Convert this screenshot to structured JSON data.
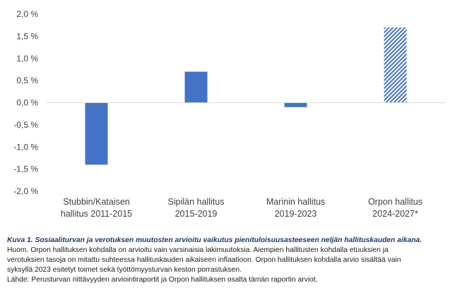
{
  "chart_data": {
    "type": "bar",
    "categories": [
      [
        "Stubbin/Kataisen",
        "hallitus 2011-2015"
      ],
      [
        "Sipilän hallitus",
        "2015-2019"
      ],
      [
        "Marinin hallitus",
        "2019-2023"
      ],
      [
        "Orpon hallitus",
        "2024-2027*"
      ]
    ],
    "values": [
      -1.4,
      0.7,
      -0.1,
      1.7
    ],
    "bar_styles": [
      "solid",
      "solid",
      "solid",
      "hatched"
    ],
    "ylim": [
      -2.0,
      2.0
    ],
    "yticks": [
      2.0,
      1.5,
      1.0,
      0.5,
      0.0,
      -0.5,
      -1.0,
      -1.5,
      -2.0
    ],
    "ytick_labels": [
      "2,0 %",
      "1,5 %",
      "1,0 %",
      "0,5 %",
      "0,0 %",
      "-0,5 %",
      "-1,0 %",
      "-1,5 %",
      "-2,0 %"
    ],
    "grid": false,
    "legend": "none",
    "colors": {
      "bar": "#4472c4",
      "axis": "#d9d9d9"
    }
  },
  "caption": {
    "title": "Kuva 1. Sosiaaliturvan ja verotuksen muutosten arvioitu vaikutus pienituloisuusasteeseen neljän hallituskauden aikana.",
    "note_lines": [
      "Huom. Orpon hallituksen kohdalla on arvioitu vain varsinaisia lakimuutoksia. Aiempien hallitusten kohdalla etuuksien ja",
      "verotuksien tasoja on mitattu suhteessa hallituskauden aikaiseen inflaatioon. Orpon hallituksen kohdalla arvio sisältää vain",
      "syksyllä 2023 esitetyt toimet sekä työttömyysturvan keston porrastuksen."
    ],
    "source": "Lähde: Perusturvan riittävyyden arviointiraportit ja Orpon hallituksen osalta tämän raportin arviot."
  }
}
